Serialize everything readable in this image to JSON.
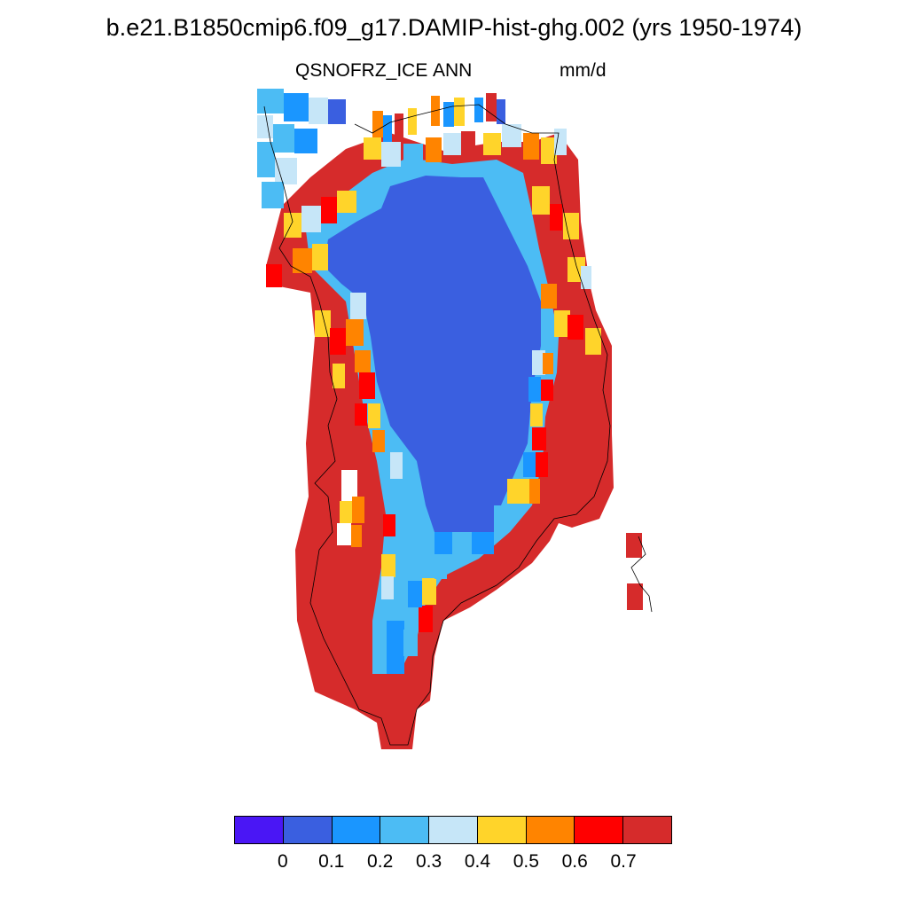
{
  "title": "b.e21.B1850cmip6.f09_g17.DAMIP-hist-ghg.002 (yrs 1950-1974)",
  "subtitle": {
    "left": "QSNOFRZ_ICE",
    "center": "ANN",
    "right": "mm/d"
  },
  "colors": {
    "interior": "#3a5fe0",
    "coast": "#d62b2b",
    "land_outline": "#000000"
  },
  "colorbar": {
    "colors": [
      "#4a16f5",
      "#3a5fe0",
      "#1a96ff",
      "#4cbcf4",
      "#c6e6f8",
      "#ffd42a",
      "#ff8400",
      "#ff0000",
      "#d62b2b"
    ],
    "labels": [
      "0",
      "0.1",
      "0.2",
      "0.3",
      "0.4",
      "0.5",
      "0.6",
      "0.7"
    ]
  }
}
